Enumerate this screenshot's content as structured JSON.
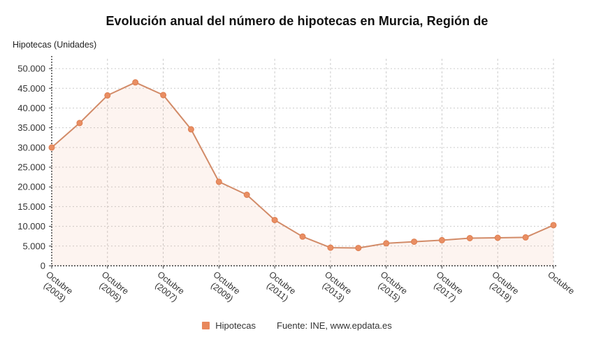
{
  "page": {
    "title": "Evolución anual del número de hipotecas en Murcia, Región de",
    "y_axis_caption": "Hipotecas (Unidades)",
    "legend_label": "Hipotecas",
    "source": "Fuente: INE, www.epdata.es"
  },
  "chart_data": {
    "type": "line",
    "title": "Evolución anual del número de hipotecas en Murcia, Región de",
    "ylabel": "Hipotecas (Unidades)",
    "xlabel": "",
    "grid": true,
    "legend_position": "bottom",
    "legend": [
      {
        "name": "Hipotecas",
        "color": "#e8885c"
      }
    ],
    "source": "Fuente: INE, www.epdata.es",
    "x": [
      2003,
      2004,
      2005,
      2006,
      2007,
      2008,
      2009,
      2010,
      2011,
      2012,
      2013,
      2014,
      2015,
      2016,
      2017,
      2018,
      2019,
      2020,
      2021
    ],
    "series": [
      {
        "name": "Hipotecas",
        "values": [
          30000,
          36200,
          43200,
          46500,
          43300,
          34600,
          21300,
          18000,
          11600,
          7400,
          4600,
          4500,
          5700,
          6100,
          6500,
          7000,
          7100,
          7200,
          10300
        ]
      }
    ],
    "x_tick_indices": [
      0,
      2,
      4,
      6,
      8,
      10,
      12,
      14,
      16,
      18
    ],
    "x_tick_labels": [
      [
        "Octubre",
        "(2003)"
      ],
      [
        "Octubre",
        "(2005)"
      ],
      [
        "Octubre",
        "(2007)"
      ],
      [
        "Octubre",
        "(2009)"
      ],
      [
        "Octubre",
        "(2011)"
      ],
      [
        "Octubre",
        "(2013)"
      ],
      [
        "Octubre",
        "(2015)"
      ],
      [
        "Octubre",
        "(2017)"
      ],
      [
        "Octubre",
        "(2019)"
      ],
      [
        "Octubre"
      ]
    ],
    "y_ticks": [
      0,
      5000,
      10000,
      15000,
      20000,
      25000,
      30000,
      35000,
      40000,
      45000,
      50000
    ],
    "y_tick_labels": [
      "0",
      "5.000",
      "10.000",
      "15.000",
      "20.000",
      "25.000",
      "30.000",
      "35.000",
      "40.000",
      "45.000",
      "50.000"
    ],
    "ylim": [
      0,
      52500
    ],
    "colors": {
      "line": "#d28b68",
      "point": "#e98e63",
      "point_border": "#dd7e50",
      "area": "rgba(236,146,106,0.10)",
      "grid": "#cccccc",
      "axis": "#3c3c3c",
      "text": "#333333"
    }
  }
}
